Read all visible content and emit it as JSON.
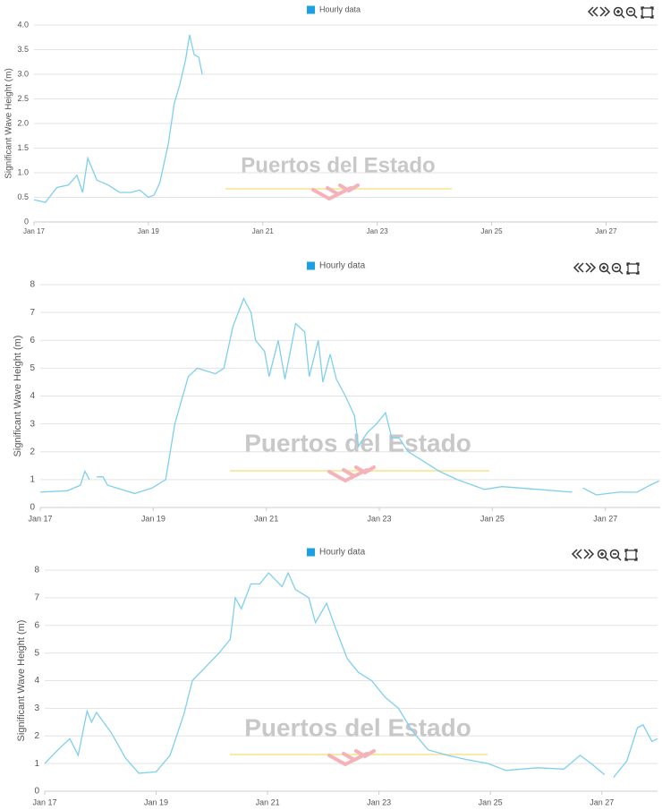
{
  "chart_data": [
    {
      "type": "line",
      "ylabel": "Significant Wave Height (m)",
      "watermark": "Puertos del Estado",
      "x": [
        17.0,
        17.2,
        17.4,
        17.6,
        17.75,
        17.85,
        17.94,
        18.1,
        18.3,
        18.5,
        18.7,
        18.85,
        19.0,
        19.1,
        19.2,
        19.35,
        19.45,
        19.55,
        19.65,
        19.72,
        19.8,
        19.88,
        19.94
      ],
      "series": [
        {
          "name": "Hourly data",
          "color": "#7fcfee",
          "values": [
            0.45,
            0.4,
            0.7,
            0.75,
            0.95,
            0.6,
            1.3,
            0.85,
            0.75,
            0.6,
            0.6,
            0.65,
            0.5,
            0.55,
            0.8,
            1.6,
            2.4,
            2.8,
            3.3,
            3.8,
            3.4,
            3.35,
            3.0
          ]
        }
      ],
      "legend_color": "#1ba1e2",
      "xlim": [
        17,
        27.9
      ],
      "xticks": [
        {
          "value": 17,
          "label": "Jan 17"
        },
        {
          "value": 19,
          "label": "Jan 19"
        },
        {
          "value": 21,
          "label": "Jan 21"
        },
        {
          "value": 23,
          "label": "Jan 23"
        },
        {
          "value": 25,
          "label": "Jan 25"
        },
        {
          "value": 27,
          "label": "Jan 27"
        }
      ],
      "ylim": [
        0,
        4
      ],
      "yticks": [
        0,
        0.5,
        {
          "value": 1,
          "label": "1.0"
        },
        1.5,
        {
          "value": 2,
          "label": "2.0"
        },
        2.5,
        {
          "value": 3,
          "label": "3.0"
        },
        3.5,
        {
          "value": 4,
          "label": "4.0"
        }
      ],
      "grid": true
    },
    {
      "type": "line",
      "ylabel": "Significant Wave Height (m)",
      "watermark": "Puertos del Estado",
      "x": [
        17.0,
        17.48,
        17.71,
        17.79,
        17.87,
        17.93,
        18.0,
        18.11,
        18.19,
        18.51,
        18.67,
        18.98,
        19.22,
        19.38,
        19.62,
        19.78,
        20.1,
        20.25,
        20.41,
        20.6,
        20.73,
        20.81,
        20.97,
        21.05,
        21.21,
        21.33,
        21.52,
        21.68,
        21.76,
        21.92,
        22.0,
        22.13,
        22.24,
        22.4,
        22.56,
        22.63,
        22.79,
        22.95,
        23.11,
        23.22,
        23.35,
        23.51,
        23.75,
        24.06,
        24.38,
        24.86,
        25.17,
        25.81,
        26.41,
        26.5,
        26.6,
        26.84,
        27.24,
        27.56,
        27.79,
        27.95
      ],
      "series": [
        {
          "name": "Hourly data",
          "color": "#7fcfee",
          "values": [
            0.55,
            0.6,
            0.8,
            1.3,
            1.0,
            null,
            1.1,
            1.1,
            0.8,
            0.6,
            0.5,
            0.7,
            1.0,
            3.0,
            4.7,
            5.0,
            4.8,
            5.0,
            6.5,
            7.5,
            7.0,
            6.0,
            5.6,
            4.7,
            6.0,
            4.6,
            6.6,
            6.3,
            4.7,
            6.0,
            4.5,
            5.5,
            4.6,
            4.0,
            3.3,
            2.2,
            2.7,
            3.0,
            3.4,
            2.5,
            2.5,
            2.0,
            1.7,
            1.3,
            1.0,
            0.65,
            0.75,
            0.65,
            0.55,
            null,
            0.7,
            0.45,
            0.55,
            0.55,
            0.8,
            0.95
          ]
        }
      ],
      "legend_color": "#1ba1e2",
      "xlim": [
        17,
        27.97
      ],
      "xticks": [
        {
          "value": 17,
          "label": "Jan 17"
        },
        {
          "value": 19,
          "label": "Jan 19"
        },
        {
          "value": 21,
          "label": "Jan 21"
        },
        {
          "value": 23,
          "label": "Jan 23"
        },
        {
          "value": 25,
          "label": "Jan 25"
        },
        {
          "value": 27,
          "label": "Jan 27"
        }
      ],
      "ylim": [
        0,
        8
      ],
      "yticks": [
        0,
        1,
        2,
        3,
        4,
        5,
        6,
        7,
        8
      ],
      "grid": true
    },
    {
      "type": "line",
      "ylabel": "Significant Wave Height (m)",
      "watermark": "Puertos del Estado",
      "x": [
        17.0,
        17.24,
        17.45,
        17.6,
        17.76,
        17.84,
        17.93,
        18.2,
        18.45,
        18.69,
        19.0,
        19.25,
        19.5,
        19.65,
        19.89,
        20.13,
        20.33,
        20.42,
        20.53,
        20.7,
        20.86,
        21.02,
        21.26,
        21.37,
        21.5,
        21.74,
        21.86,
        22.06,
        22.22,
        22.43,
        22.63,
        22.87,
        23.11,
        23.35,
        23.59,
        23.88,
        24.23,
        24.56,
        24.96,
        25.28,
        25.84,
        26.32,
        26.61,
        26.81,
        27.05,
        27.13,
        27.21,
        27.45,
        27.64,
        27.74,
        27.9,
        28.0
      ],
      "series": [
        {
          "name": "Hourly data",
          "color": "#7fcfee",
          "values": [
            1.0,
            1.5,
            1.9,
            1.3,
            2.9,
            2.5,
            2.85,
            2.1,
            1.2,
            0.65,
            0.7,
            1.3,
            2.8,
            4.0,
            4.5,
            5.0,
            5.5,
            7.0,
            6.6,
            7.5,
            7.5,
            7.9,
            7.4,
            7.9,
            7.3,
            7.0,
            6.1,
            6.8,
            5.9,
            4.8,
            4.3,
            4.0,
            3.4,
            3.0,
            2.2,
            1.5,
            1.3,
            1.15,
            1.0,
            0.75,
            0.85,
            0.8,
            1.3,
            1.0,
            0.6,
            null,
            0.5,
            1.1,
            2.3,
            2.4,
            1.8,
            1.9
          ]
        }
      ],
      "legend_color": "#1ba1e2",
      "xlim": [
        17,
        28.0
      ],
      "xticks": [
        {
          "value": 17,
          "label": "Jan 17"
        },
        {
          "value": 19,
          "label": "Jan 19"
        },
        {
          "value": 21,
          "label": "Jan 21"
        },
        {
          "value": 23,
          "label": "Jan 23"
        },
        {
          "value": 25,
          "label": "Jan 25"
        },
        {
          "value": 27,
          "label": "Jan 27"
        }
      ],
      "ylim": [
        0,
        8
      ],
      "yticks": [
        0,
        1,
        2,
        3,
        4,
        5,
        6,
        7,
        8
      ],
      "grid": true
    }
  ]
}
